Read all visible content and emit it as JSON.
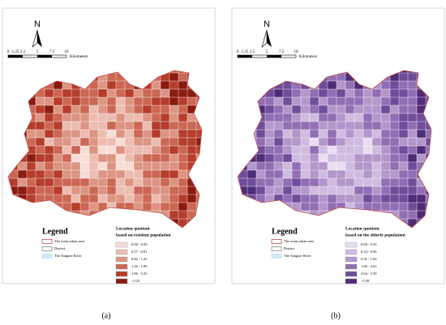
{
  "panels": [
    {
      "north": "N",
      "scale_labels": [
        "0",
        "1.25",
        "2.5",
        "5",
        "7.5",
        "10"
      ],
      "scale_unit": "Kilometers",
      "legend_title": "Legend",
      "legend_items": [
        {
          "label": "The main urban area",
          "stroke": "#c0504d",
          "fill": "#ffffff"
        },
        {
          "label": "District",
          "stroke": "#888888",
          "fill": "#ffffff"
        },
        {
          "label": "The Yangtze River",
          "stroke": "#bfe3f2",
          "fill": "#cfeaf7"
        }
      ],
      "quotient_title": [
        "Location quotient",
        "based on resident population"
      ],
      "classes": [
        {
          "label": "0.00 - 0.56",
          "color": "#f8dcd6"
        },
        {
          "label": "0.57 - 0.81",
          "color": "#ecbcb0"
        },
        {
          "label": "0.82 - 1.25",
          "color": "#dc9483"
        },
        {
          "label": "1.26 - 1.85",
          "color": "#cb6753"
        },
        {
          "label": "1.86 - 3.25",
          "color": "#b63d2b"
        },
        {
          "label": ">3.25",
          "color": "#8a1b10"
        }
      ],
      "caption": "(a)"
    },
    {
      "north": "N",
      "scale_labels": [
        "0",
        "1.25",
        "2.5",
        "5",
        "7.5",
        "10"
      ],
      "scale_unit": "Kilometers",
      "legend_title": "Legend",
      "legend_items": [
        {
          "label": "The main urban area",
          "stroke": "#c0504d",
          "fill": "#ffffff"
        },
        {
          "label": "District",
          "stroke": "#888888",
          "fill": "#ffffff"
        },
        {
          "label": "The Yangtze River",
          "stroke": "#bfe3f2",
          "fill": "#cfeaf7"
        }
      ],
      "quotient_title": [
        "Location quotient",
        "based on the elderly population"
      ],
      "classes": [
        {
          "label": "0.00 - 0.33",
          "color": "#e8def0"
        },
        {
          "label": "0.34 - 0.90",
          "color": "#cfbbe0"
        },
        {
          "label": "0.91 - 1.65",
          "color": "#b397cb"
        },
        {
          "label": "1.66 - 2.63",
          "color": "#926eb4"
        },
        {
          "label": "2.64 - 5.39",
          "color": "#704c9a"
        },
        {
          "label": ">5.39",
          "color": "#4f2b78"
        }
      ],
      "caption": "(b)"
    }
  ]
}
